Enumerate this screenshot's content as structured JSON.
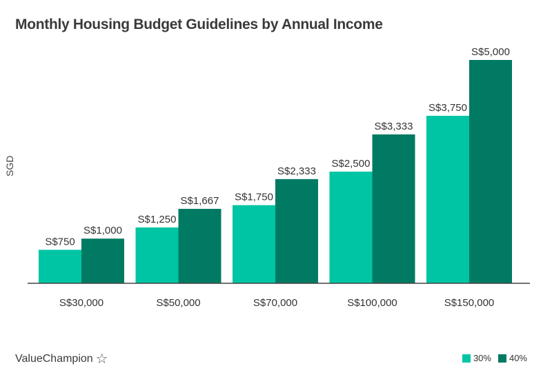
{
  "chart_data": {
    "type": "bar",
    "title": "Monthly Housing Budget Guidelines by Annual Income",
    "ylabel": "SGD",
    "xlabel": "",
    "categories": [
      "S$30,000",
      "S$50,000",
      "S$70,000",
      "S$100,000",
      "S$150,000"
    ],
    "series": [
      {
        "name": "30%",
        "color": "#00c5a5",
        "values": [
          750,
          1250,
          1750,
          2500,
          3750
        ],
        "labels": [
          "S$750",
          "S$1,250",
          "S$1,750",
          "S$2,500",
          "S$3,750"
        ]
      },
      {
        "name": "40%",
        "color": "#007a62",
        "values": [
          1000,
          1667,
          2333,
          3333,
          5000
        ],
        "labels": [
          "S$1,000",
          "S$1,667",
          "S$2,333",
          "S$3,333",
          "S$5,000"
        ]
      }
    ],
    "ylim": [
      0,
      5000
    ],
    "grid": false,
    "legend": "bottom-right"
  },
  "footer": {
    "brand": "ValueChampion",
    "icon": "star-outline-icon"
  }
}
